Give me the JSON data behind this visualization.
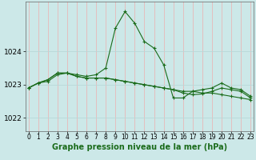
{
  "title": "Graphe pression niveau de la mer (hPa)",
  "background_color": "#cce8e8",
  "grid_color_v": "#e8b8b8",
  "grid_color_h": "#b8d8d8",
  "line_color": "#1a6b1a",
  "x_ticks": [
    0,
    1,
    2,
    3,
    4,
    5,
    6,
    7,
    8,
    9,
    10,
    11,
    12,
    13,
    14,
    15,
    16,
    17,
    18,
    19,
    20,
    21,
    22,
    23
  ],
  "y_ticks": [
    1022,
    1023,
    1024
  ],
  "ylim": [
    1021.6,
    1025.5
  ],
  "xlim": [
    -0.3,
    23.3
  ],
  "series": [
    {
      "x": [
        0,
        1,
        2,
        3,
        4,
        5,
        6,
        7,
        8,
        9,
        10,
        11,
        12,
        13,
        14,
        15,
        16,
        17,
        18,
        19,
        20,
        21,
        22,
        23
      ],
      "y": [
        1022.9,
        1023.05,
        1023.1,
        1023.3,
        1023.35,
        1023.3,
        1023.25,
        1023.3,
        1023.5,
        1024.7,
        1025.2,
        1024.85,
        1024.3,
        1024.1,
        1023.6,
        1022.6,
        1022.6,
        1022.8,
        1022.85,
        1022.9,
        1023.05,
        1022.9,
        1022.85,
        1022.65
      ]
    },
    {
      "x": [
        0,
        1,
        2,
        3,
        4,
        5,
        6,
        7,
        8,
        9,
        10,
        11,
        12,
        13,
        14,
        15,
        16,
        17,
        18,
        19,
        20,
        21,
        22,
        23
      ],
      "y": [
        1022.9,
        1023.05,
        1023.15,
        1023.35,
        1023.35,
        1023.25,
        1023.2,
        1023.2,
        1023.2,
        1023.15,
        1023.1,
        1023.05,
        1023.0,
        1022.95,
        1022.9,
        1022.85,
        1022.8,
        1022.8,
        1022.75,
        1022.75,
        1022.7,
        1022.65,
        1022.6,
        1022.55
      ]
    },
    {
      "x": [
        0,
        1,
        2,
        3,
        4,
        5,
        6,
        7,
        8,
        9,
        10,
        11,
        12,
        13,
        14,
        15,
        16,
        17,
        18,
        19,
        20,
        21,
        22,
        23
      ],
      "y": [
        1022.9,
        1023.05,
        1023.15,
        1023.35,
        1023.35,
        1023.25,
        1023.2,
        1023.2,
        1023.2,
        1023.15,
        1023.1,
        1023.05,
        1023.0,
        1022.95,
        1022.9,
        1022.85,
        1022.75,
        1022.7,
        1022.72,
        1022.8,
        1022.9,
        1022.85,
        1022.8,
        1022.6
      ]
    }
  ],
  "marker": "+",
  "markersize": 3.5,
  "linewidth": 0.8,
  "title_fontsize": 7.0,
  "tick_fontsize": 5.5,
  "ytick_fontsize": 6.5
}
